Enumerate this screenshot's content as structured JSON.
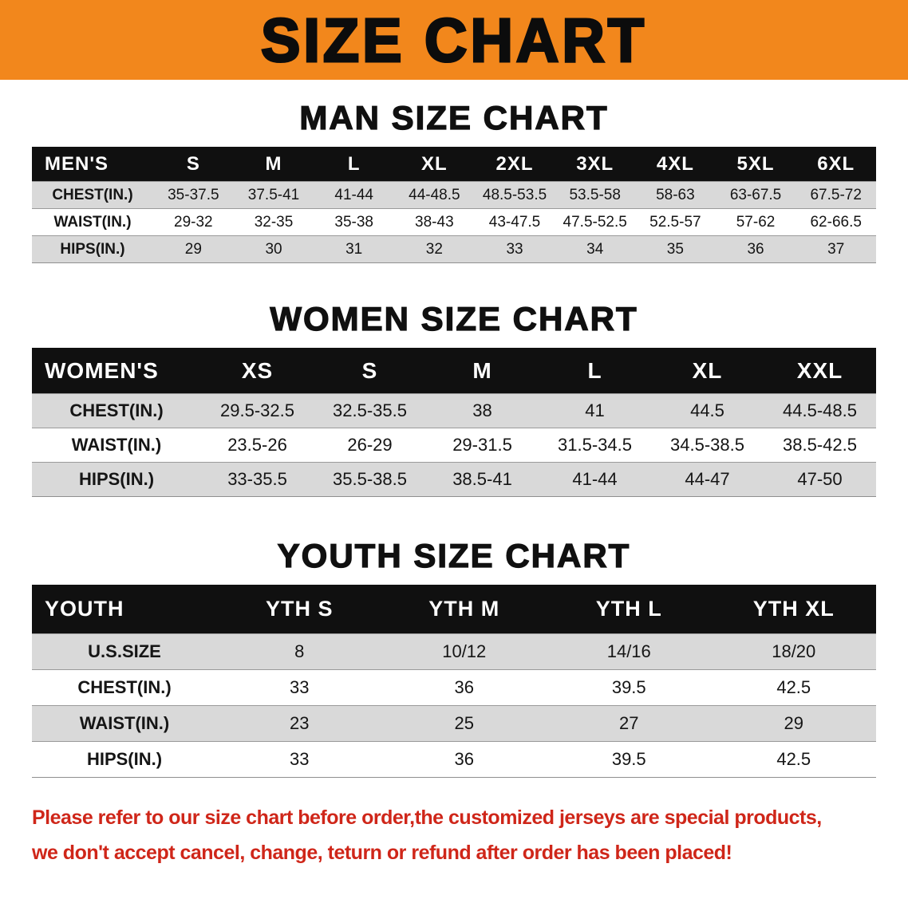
{
  "banner": {
    "title": "SIZE CHART",
    "bg": "#f2871c"
  },
  "chart_data": [
    {
      "type": "table",
      "title": "MAN SIZE CHART",
      "columns": [
        "MEN'S",
        "S",
        "M",
        "L",
        "XL",
        "2XL",
        "3XL",
        "4XL",
        "5XL",
        "6XL"
      ],
      "rows": [
        [
          "CHEST(IN.)",
          "35-37.5",
          "37.5-41",
          "41-44",
          "44-48.5",
          "48.5-53.5",
          "53.5-58",
          "58-63",
          "63-67.5",
          "67.5-72"
        ],
        [
          "WAIST(IN.)",
          "29-32",
          "32-35",
          "35-38",
          "38-43",
          "43-47.5",
          "47.5-52.5",
          "52.5-57",
          "57-62",
          "62-66.5"
        ],
        [
          "HIPS(IN.)",
          "29",
          "30",
          "31",
          "32",
          "33",
          "34",
          "35",
          "36",
          "37"
        ]
      ]
    },
    {
      "type": "table",
      "title": "WOMEN SIZE CHART",
      "columns": [
        "WOMEN'S",
        "XS",
        "S",
        "M",
        "L",
        "XL",
        "XXL"
      ],
      "rows": [
        [
          "CHEST(IN.)",
          "29.5-32.5",
          "32.5-35.5",
          "38",
          "41",
          "44.5",
          "44.5-48.5"
        ],
        [
          "WAIST(IN.)",
          "23.5-26",
          "26-29",
          "29-31.5",
          "31.5-34.5",
          "34.5-38.5",
          "38.5-42.5"
        ],
        [
          "HIPS(IN.)",
          "33-35.5",
          "35.5-38.5",
          "38.5-41",
          "41-44",
          "44-47",
          "47-50"
        ]
      ]
    },
    {
      "type": "table",
      "title": "YOUTH SIZE CHART",
      "columns": [
        "YOUTH",
        "YTH S",
        "YTH M",
        "YTH L",
        "YTH XL"
      ],
      "rows": [
        [
          "U.S.SIZE",
          "8",
          "10/12",
          "14/16",
          "18/20"
        ],
        [
          "CHEST(IN.)",
          "33",
          "36",
          "39.5",
          "42.5"
        ],
        [
          "WAIST(IN.)",
          "23",
          "25",
          "27",
          "29"
        ],
        [
          "HIPS(IN.)",
          "33",
          "36",
          "39.5",
          "42.5"
        ]
      ]
    }
  ],
  "footer": {
    "line1": "Please refer to our size chart before order,the customized jerseys are special products,",
    "line2": "we don't accept cancel, change, teturn or refund after order has been placed!",
    "color": "#cf2619"
  }
}
